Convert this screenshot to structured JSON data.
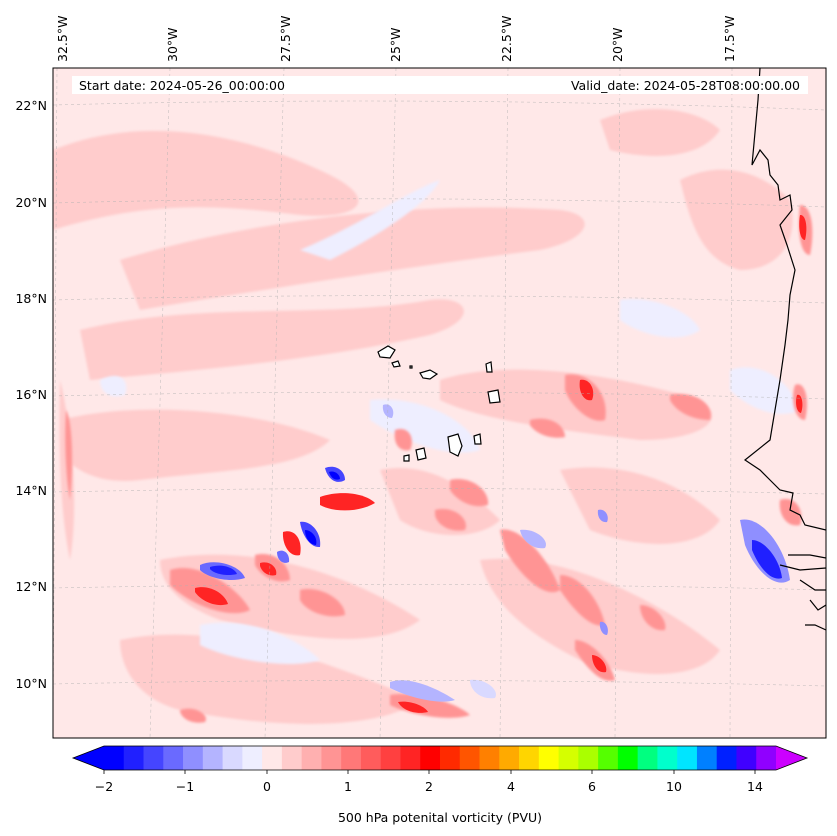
{
  "map": {
    "start_date": "Start date: 2024-05-26_00:00:00",
    "valid_date": "Valid_date: 2024-05-28T08:00:00.00",
    "lon_labels": [
      "32.5°W",
      "30°W",
      "27.5°W",
      "25°W",
      "22.5°W",
      "20°W",
      "17.5°W"
    ],
    "lat_labels": [
      "22°N",
      "20°N",
      "18°N",
      "16°N",
      "14°N",
      "12°N",
      "10°N"
    ],
    "field": "500 hPa potential vorticity",
    "background_color": "#ffe8e8"
  },
  "colorbar": {
    "label": "500 hPa potenital vorticity (PVU)",
    "tick_labels": [
      "−2",
      "−1",
      "0",
      "1",
      "2",
      "4",
      "6",
      "10",
      "14"
    ],
    "extend": "both",
    "under_color": "#0000ff",
    "over_color": "#cc00ff",
    "colors": [
      "#0000ff",
      "#2020ff",
      "#4545ff",
      "#6a6aff",
      "#8f8fff",
      "#b4b4ff",
      "#d9d9ff",
      "#eeeeff",
      "#ffe8e8",
      "#ffcccc",
      "#ffb0b0",
      "#ff9494",
      "#ff7878",
      "#ff5c5c",
      "#ff4040",
      "#ff2424",
      "#ff0000",
      "#ff2a00",
      "#ff5500",
      "#ff8000",
      "#ffaa00",
      "#ffd500",
      "#ffff00",
      "#d5ff00",
      "#aaff00",
      "#55ff00",
      "#00ff00",
      "#00ff80",
      "#00ffcc",
      "#00e5ff",
      "#0080ff",
      "#0020ff",
      "#4000ff",
      "#9000ff"
    ]
  }
}
